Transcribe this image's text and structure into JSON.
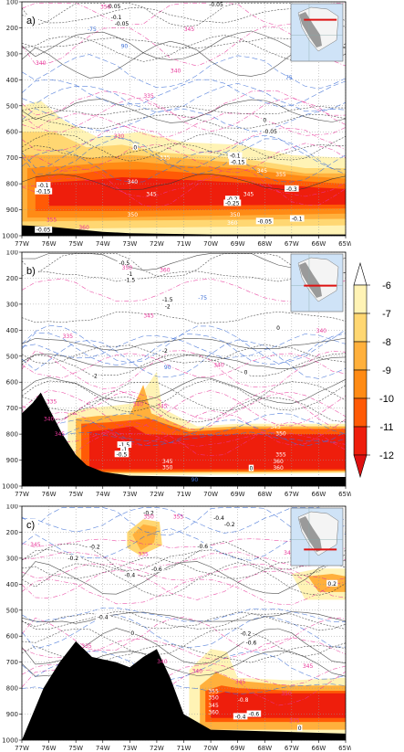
{
  "chart_data": [
    {
      "type": "contour",
      "panel_label": "a)",
      "x_ticks": [
        "77W",
        "76W",
        "75W",
        "74W",
        "73W",
        "72W",
        "71W",
        "70W",
        "69W",
        "68W",
        "67W",
        "66W",
        "65W"
      ],
      "y_ticks": [
        "100",
        "200",
        "300",
        "400",
        "500",
        "600",
        "700",
        "800",
        "900",
        "1000"
      ],
      "ylim": [
        1000,
        100
      ],
      "contour_labels": [
        {
          "text": "-0.05",
          "lon": -73.6,
          "p": 118,
          "color": "black"
        },
        {
          "text": "-0.1",
          "lon": -73.5,
          "p": 160,
          "color": "black"
        },
        {
          "text": "-0.05",
          "lon": -73.3,
          "p": 185,
          "color": "black"
        },
        {
          "text": "350",
          "lon": -73.9,
          "p": 120,
          "color": "magenta"
        },
        {
          "text": "-0.05",
          "lon": -69.8,
          "p": 110,
          "color": "black"
        },
        {
          "text": "345",
          "lon": -70.8,
          "p": 205,
          "color": "magenta"
        },
        {
          "text": "340",
          "lon": -76.3,
          "p": 335,
          "color": "magenta"
        },
        {
          "text": "340",
          "lon": -71.3,
          "p": 365,
          "color": "magenta"
        },
        {
          "text": "335",
          "lon": -72.3,
          "p": 462,
          "color": "magenta"
        },
        {
          "text": "-75",
          "lon": -74.4,
          "p": 205,
          "color": "blue"
        },
        {
          "text": "90",
          "lon": -73.2,
          "p": 270,
          "color": "blue"
        },
        {
          "text": "75",
          "lon": -67.1,
          "p": 392,
          "color": "blue"
        },
        {
          "text": "0",
          "lon": -68.0,
          "p": 555,
          "color": "black"
        },
        {
          "text": "-0.05",
          "lon": -67.8,
          "p": 600,
          "color": "black"
        },
        {
          "text": "330",
          "lon": -73.4,
          "p": 617,
          "color": "magenta"
        },
        {
          "text": "0",
          "lon": -72.8,
          "p": 660,
          "color": "black"
        },
        {
          "text": "-0.1",
          "lon": -69.1,
          "p": 693,
          "color": "black"
        },
        {
          "text": "-0.15",
          "lon": -69.0,
          "p": 717,
          "color": "black"
        },
        {
          "text": "335",
          "lon": -71.7,
          "p": 700,
          "color": "white"
        },
        {
          "text": "345",
          "lon": -68.1,
          "p": 750,
          "color": "white"
        },
        {
          "text": "355",
          "lon": -67.4,
          "p": 765,
          "color": "white"
        },
        {
          "text": "340",
          "lon": -72.9,
          "p": 793,
          "color": "white"
        },
        {
          "text": "-0.1",
          "lon": -76.2,
          "p": 807,
          "color": "black"
        },
        {
          "text": "-0.15",
          "lon": -76.2,
          "p": 830,
          "color": "black"
        },
        {
          "text": "345",
          "lon": -72.2,
          "p": 840,
          "color": "white"
        },
        {
          "text": "345",
          "lon": -68.6,
          "p": 840,
          "color": "white"
        },
        {
          "text": "-0.3",
          "lon": -67.0,
          "p": 820,
          "color": "black"
        },
        {
          "text": "-0.2",
          "lon": -69.2,
          "p": 860,
          "color": "black"
        },
        {
          "text": "-0.25",
          "lon": -69.2,
          "p": 875,
          "color": "black"
        },
        {
          "text": "350",
          "lon": -72.9,
          "p": 920,
          "color": "white"
        },
        {
          "text": "350",
          "lon": -69.1,
          "p": 920,
          "color": "white"
        },
        {
          "text": "355",
          "lon": -75.9,
          "p": 938,
          "color": "magenta"
        },
        {
          "text": "360",
          "lon": -69.2,
          "p": 950,
          "color": "white"
        },
        {
          "text": "360",
          "lon": -74.7,
          "p": 968,
          "color": "magenta"
        },
        {
          "text": "-0.05",
          "lon": -76.2,
          "p": 978,
          "color": "black"
        },
        {
          "text": "-0.05",
          "lon": -68.0,
          "p": 945,
          "color": "black"
        },
        {
          "text": "-0.1",
          "lon": -66.8,
          "p": 935,
          "color": "black"
        }
      ]
    },
    {
      "type": "contour",
      "panel_label": "b)",
      "x_ticks": [
        "77W",
        "76W",
        "75W",
        "74W",
        "73W",
        "72W",
        "71W",
        "70W",
        "69W",
        "68W",
        "67W",
        "66W",
        "65W"
      ],
      "y_ticks": [
        "100",
        "200",
        "300",
        "400",
        "500",
        "600",
        "700",
        "800",
        "900",
        "1000"
      ],
      "ylim": [
        1000,
        100
      ],
      "contour_labels": [
        {
          "text": "-0.5",
          "lon": -73.2,
          "p": 143,
          "color": "black"
        },
        {
          "text": "350",
          "lon": -73.1,
          "p": 160,
          "color": "magenta"
        },
        {
          "text": "-1",
          "lon": -73.0,
          "p": 185,
          "color": "black"
        },
        {
          "text": "-1.5",
          "lon": -73.0,
          "p": 208,
          "color": "black"
        },
        {
          "text": "360",
          "lon": -71.7,
          "p": 168,
          "color": "magenta"
        },
        {
          "text": "-1.5",
          "lon": -71.6,
          "p": 282,
          "color": "black"
        },
        {
          "text": "-2",
          "lon": -71.6,
          "p": 310,
          "color": "black"
        },
        {
          "text": "345",
          "lon": -72.3,
          "p": 345,
          "color": "magenta"
        },
        {
          "text": "-75",
          "lon": -70.3,
          "p": 275,
          "color": "blue"
        },
        {
          "text": "340",
          "lon": -65.9,
          "p": 403,
          "color": "magenta"
        },
        {
          "text": "335",
          "lon": -75.3,
          "p": 423,
          "color": "magenta"
        },
        {
          "text": "0",
          "lon": -67.5,
          "p": 392,
          "color": "black"
        },
        {
          "text": "-2",
          "lon": -71.7,
          "p": 480,
          "color": "black"
        },
        {
          "text": "90",
          "lon": -71.6,
          "p": 543,
          "color": "blue"
        },
        {
          "text": "340",
          "lon": -69.7,
          "p": 535,
          "color": "magenta"
        },
        {
          "text": "0",
          "lon": -68.7,
          "p": 563,
          "color": "black"
        },
        {
          "text": "-2",
          "lon": -74.3,
          "p": 577,
          "color": "black"
        },
        {
          "text": "340",
          "lon": -72.7,
          "p": 685,
          "color": "magenta"
        },
        {
          "text": "345",
          "lon": -71.8,
          "p": 693,
          "color": "magenta"
        },
        {
          "text": "335",
          "lon": -75.9,
          "p": 675,
          "color": "magenta"
        },
        {
          "text": "340",
          "lon": -76.0,
          "p": 741,
          "color": "magenta"
        },
        {
          "text": "345",
          "lon": -67.6,
          "p": 772,
          "color": "white"
        },
        {
          "text": "350",
          "lon": -67.4,
          "p": 798,
          "color": "white"
        },
        {
          "text": "-1.5",
          "lon": -73.2,
          "p": 842,
          "color": "black"
        },
        {
          "text": "-1",
          "lon": -73.2,
          "p": 860,
          "color": "black"
        },
        {
          "text": "-0.5",
          "lon": -73.3,
          "p": 878,
          "color": "black"
        },
        {
          "text": "345",
          "lon": -71.6,
          "p": 905,
          "color": "white"
        },
        {
          "text": "350",
          "lon": -71.6,
          "p": 928,
          "color": "white"
        },
        {
          "text": "355",
          "lon": -67.4,
          "p": 878,
          "color": "white"
        },
        {
          "text": "345",
          "lon": -75.6,
          "p": 800,
          "color": "magenta"
        },
        {
          "text": "360",
          "lon": -67.5,
          "p": 905,
          "color": "white"
        },
        {
          "text": "360",
          "lon": -67.5,
          "p": 930,
          "color": "white"
        },
        {
          "text": "0",
          "lon": -68.5,
          "p": 932,
          "color": "black"
        },
        {
          "text": "90",
          "lon": -70.6,
          "p": 975,
          "color": "blue"
        }
      ]
    },
    {
      "type": "contour",
      "panel_label": "c)",
      "x_ticks": [
        "77W",
        "76W",
        "75W",
        "74W",
        "73W",
        "72W",
        "71W",
        "70W",
        "69W",
        "68W",
        "67W",
        "66W",
        "65W"
      ],
      "y_ticks": [
        "100",
        "200",
        "300",
        "400",
        "500",
        "600",
        "700",
        "800",
        "900",
        "1000"
      ],
      "ylim": [
        1000,
        100
      ],
      "contour_labels": [
        {
          "text": "-0.2",
          "lon": -72.3,
          "p": 127,
          "color": "black"
        },
        {
          "text": "350",
          "lon": -72.3,
          "p": 140,
          "color": "magenta"
        },
        {
          "text": "355",
          "lon": -71.2,
          "p": 140,
          "color": "magenta"
        },
        {
          "text": "-0.4",
          "lon": -69.7,
          "p": 145,
          "color": "black"
        },
        {
          "text": "-0.2",
          "lon": -69.3,
          "p": 170,
          "color": "black"
        },
        {
          "text": "345",
          "lon": -76.5,
          "p": 247,
          "color": "magenta"
        },
        {
          "text": "-0.2",
          "lon": -74.3,
          "p": 256,
          "color": "black"
        },
        {
          "text": "-0.6",
          "lon": -70.3,
          "p": 255,
          "color": "black"
        },
        {
          "text": "-0.2",
          "lon": -75.1,
          "p": 300,
          "color": "black"
        },
        {
          "text": "340",
          "lon": -67.1,
          "p": 280,
          "color": "magenta"
        },
        {
          "text": "335",
          "lon": -72.5,
          "p": 285,
          "color": "magenta"
        },
        {
          "text": "-0.6",
          "lon": -72.0,
          "p": 343,
          "color": "black"
        },
        {
          "text": "-0.4",
          "lon": -73.0,
          "p": 365,
          "color": "black"
        },
        {
          "text": "0.2",
          "lon": -65.5,
          "p": 398,
          "color": "black"
        },
        {
          "text": "-0.4",
          "lon": -74.0,
          "p": 528,
          "color": "black"
        },
        {
          "text": "0",
          "lon": -72.9,
          "p": 588,
          "color": "black"
        },
        {
          "text": "335",
          "lon": -74.6,
          "p": 638,
          "color": "magenta"
        },
        {
          "text": "-0.2",
          "lon": -68.7,
          "p": 590,
          "color": "black"
        },
        {
          "text": "-0.6",
          "lon": -68.5,
          "p": 625,
          "color": "black"
        },
        {
          "text": "340",
          "lon": -71.8,
          "p": 698,
          "color": "magenta"
        },
        {
          "text": "340",
          "lon": -70.5,
          "p": 735,
          "color": "magenta"
        },
        {
          "text": "345",
          "lon": -66.4,
          "p": 715,
          "color": "magenta"
        },
        {
          "text": "345",
          "lon": -68.9,
          "p": 775,
          "color": "magenta"
        },
        {
          "text": "350",
          "lon": -67.2,
          "p": 820,
          "color": "magenta"
        },
        {
          "text": "355",
          "lon": -69.9,
          "p": 812,
          "color": "white"
        },
        {
          "text": "350",
          "lon": -69.9,
          "p": 836,
          "color": "white"
        },
        {
          "text": "-0.8",
          "lon": -68.8,
          "p": 845,
          "color": "white"
        },
        {
          "text": "345",
          "lon": -69.9,
          "p": 866,
          "color": "white"
        },
        {
          "text": "360",
          "lon": -69.9,
          "p": 893,
          "color": "white"
        },
        {
          "text": "-0.4",
          "lon": -68.9,
          "p": 910,
          "color": "black"
        },
        {
          "text": "-0.6",
          "lon": -68.4,
          "p": 900,
          "color": "black"
        },
        {
          "text": "375",
          "lon": -66.9,
          "p": 925,
          "color": "magenta"
        },
        {
          "text": "0",
          "lon": -66.7,
          "p": 955,
          "color": "black"
        }
      ]
    }
  ],
  "colorbar": {
    "ticks": [
      "-6",
      "-7",
      "-8",
      "-9",
      "-10",
      "-11",
      "-12"
    ],
    "colors": [
      "#ffffff",
      "#fff3b5",
      "#ffd772",
      "#ffb03c",
      "#ff8b15",
      "#ff5a06",
      "#ee1e0c",
      "#de1010"
    ]
  },
  "colors": {
    "omega": "#000000",
    "theta_e": "#e8379a",
    "rh": "#3d6fd6",
    "terrain": "#000000"
  }
}
